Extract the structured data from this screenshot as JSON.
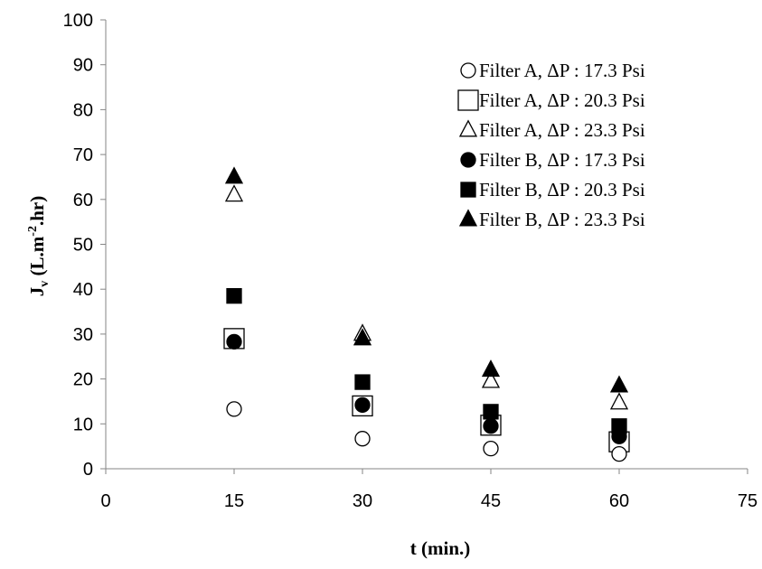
{
  "chart_data": {
    "type": "scatter",
    "title": "",
    "xlabel": "t (min.)",
    "ylabel": {
      "main": "J",
      "sub": "v",
      "pre": " (L.m",
      "sup": "-2",
      "post": ".hr)"
    },
    "xlim": [
      0,
      75
    ],
    "ylim": [
      0,
      100
    ],
    "xticks": [
      0,
      15,
      30,
      45,
      60,
      75
    ],
    "yticks": [
      0,
      10,
      20,
      30,
      40,
      50,
      60,
      70,
      80,
      90,
      100
    ],
    "grid": false,
    "legend_position": "top-right",
    "series": [
      {
        "name": "Filter A,  ΔP : 17.3 Psi",
        "marker": "circle-open",
        "x": [
          15,
          30,
          45,
          60
        ],
        "y": [
          13.3,
          6.7,
          4.5,
          3.3
        ]
      },
      {
        "name": "Filter A,  ΔP : 20.3 Psi",
        "marker": "square-open",
        "x": [
          15,
          30,
          45,
          60
        ],
        "y": [
          29.0,
          14.0,
          9.7,
          6.0
        ]
      },
      {
        "name": "Filter A,  ΔP : 23.3 Psi",
        "marker": "triangle-open",
        "x": [
          15,
          30,
          45,
          60
        ],
        "y": [
          61.0,
          30.0,
          19.5,
          14.7
        ]
      },
      {
        "name": "Filter B,  ΔP : 17.3 Psi",
        "marker": "circle-filled",
        "x": [
          15,
          30,
          45,
          60
        ],
        "y": [
          28.3,
          14.2,
          9.5,
          7.2
        ]
      },
      {
        "name": "Filter B,  ΔP : 20.3 Psi",
        "marker": "square-filled",
        "x": [
          15,
          30,
          45,
          60
        ],
        "y": [
          38.5,
          19.3,
          12.7,
          9.5
        ]
      },
      {
        "name": "Filter B,  ΔP : 23.3 Psi",
        "marker": "triangle-filled",
        "x": [
          15,
          30,
          45,
          60
        ],
        "y": [
          65.0,
          29.0,
          22.0,
          18.5
        ]
      }
    ]
  }
}
